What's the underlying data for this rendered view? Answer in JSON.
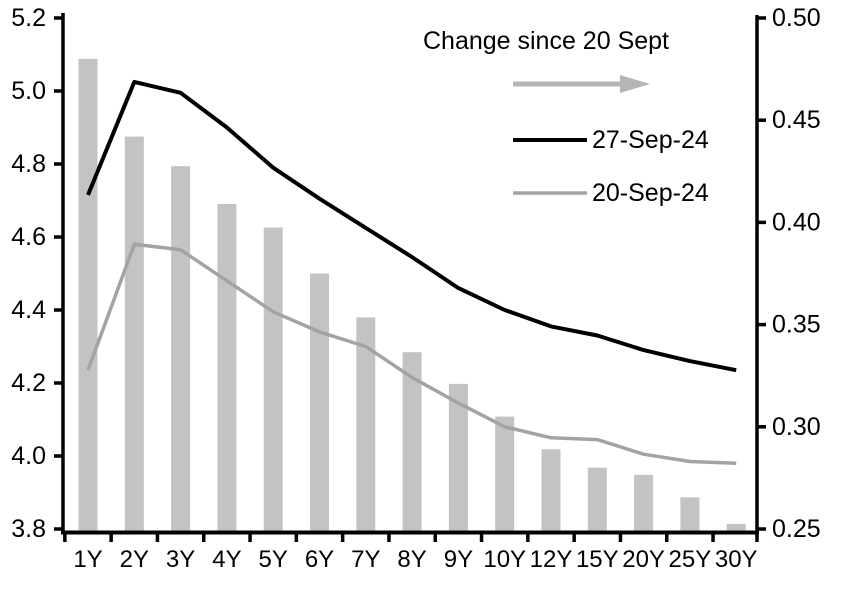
{
  "chart_data": {
    "type": "combo-bar-line",
    "title": "",
    "categories": [
      "1Y",
      "2Y",
      "3Y",
      "4Y",
      "5Y",
      "6Y",
      "7Y",
      "8Y",
      "9Y",
      "10Y",
      "12Y",
      "15Y",
      "20Y",
      "25Y",
      "30Y"
    ],
    "series": [
      {
        "name": "Change since 20 Sept",
        "type": "bar",
        "axis": "right",
        "color": "#c3c3c3",
        "values": [
          0.48,
          0.442,
          0.4275,
          0.409,
          0.3975,
          0.375,
          0.3535,
          0.3365,
          0.321,
          0.305,
          0.289,
          0.28,
          0.2765,
          0.2655,
          0.2525
        ]
      },
      {
        "name": "27-Sep-24",
        "type": "line",
        "axis": "left",
        "color": "#000000",
        "values": [
          4.715,
          5.025,
          4.995,
          4.9,
          4.79,
          4.705,
          4.625,
          4.545,
          4.46,
          4.4,
          4.355,
          4.33,
          4.29,
          4.26,
          4.235
        ]
      },
      {
        "name": "20-Sep-24",
        "type": "line",
        "axis": "left",
        "color": "#a3a3a3",
        "values": [
          4.235,
          4.58,
          4.565,
          4.48,
          4.395,
          4.34,
          4.3,
          4.215,
          4.145,
          4.08,
          4.05,
          4.045,
          4.005,
          3.985,
          3.98
        ]
      }
    ],
    "left_axis": {
      "min": 3.8,
      "max": 5.2,
      "ticks": [
        5.2,
        5.0,
        4.8,
        4.6,
        4.4,
        4.2,
        4.0,
        3.8
      ],
      "tick_labels": [
        "5.2",
        "5.0",
        "4.8",
        "4.6",
        "4.4",
        "4.2",
        "4.0",
        "3.8"
      ]
    },
    "right_axis": {
      "min": 0.25,
      "max": 0.5,
      "ticks": [
        0.5,
        0.45,
        0.4,
        0.35,
        0.3,
        0.25
      ],
      "tick_labels": [
        "0.50",
        "0.45",
        "0.40",
        "0.35",
        "0.30",
        "0.25"
      ]
    },
    "legend": {
      "title": "Change since 20 Sept",
      "arrow_direction": "right",
      "arrow_color": "#b5b5b5",
      "entries": [
        {
          "label": "27-Sep-24",
          "color": "#000000"
        },
        {
          "label": "20-Sep-24",
          "color": "#a3a3a3"
        }
      ]
    },
    "grid": false,
    "legend_position": "inside-top-right"
  }
}
